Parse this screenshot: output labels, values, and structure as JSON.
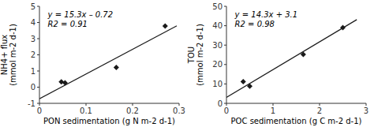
{
  "chart_data": [
    {
      "type": "scatter",
      "xlabel": "PON sedimentation (g N m-2 d-1)",
      "ylabel": "NH4+ flux\n(mmol m-2 d-1)",
      "annotations": [
        "y = 15.3x – 0.72",
        "R2 = 0.91"
      ],
      "series": [
        {
          "type": "scatter",
          "marker": "diamond",
          "color": "#1a1a1a",
          "x": [
            0.047,
            0.055,
            0.165,
            0.27
          ],
          "values": [
            0.33,
            0.27,
            1.22,
            3.78
          ]
        },
        {
          "type": "line",
          "color": "#1a1a1a",
          "x": [
            0.0,
            0.295
          ],
          "values": [
            -0.72,
            3.7935
          ]
        }
      ],
      "xlim": [
        0,
        0.3
      ],
      "ylim": [
        -1,
        5
      ],
      "xticks": [
        0,
        0.1,
        0.2,
        0.3
      ],
      "yticks": [
        -1,
        0,
        1,
        2,
        3,
        4,
        5
      ],
      "grid": false
    },
    {
      "type": "scatter",
      "xlabel": "POC sedimentation (g C m-2 d-1)",
      "ylabel": "TOU\n(mmol m-2 d-1)",
      "annotations": [
        "y = 14.3x + 3.1",
        "R2 = 0.98"
      ],
      "series": [
        {
          "type": "scatter",
          "marker": "diamond",
          "color": "#1a1a1a",
          "x": [
            0.36,
            0.5,
            1.65,
            2.5
          ],
          "values": [
            11.2,
            8.8,
            25.2,
            39.0
          ]
        },
        {
          "type": "line",
          "color": "#1a1a1a",
          "x": [
            0.0,
            2.8
          ],
          "values": [
            3.1,
            43.14
          ]
        }
      ],
      "xlim": [
        0,
        3
      ],
      "ylim": [
        0,
        50
      ],
      "xticks": [
        0,
        1,
        2,
        3
      ],
      "yticks": [
        0,
        10,
        20,
        30,
        40,
        50
      ],
      "grid": false
    }
  ]
}
